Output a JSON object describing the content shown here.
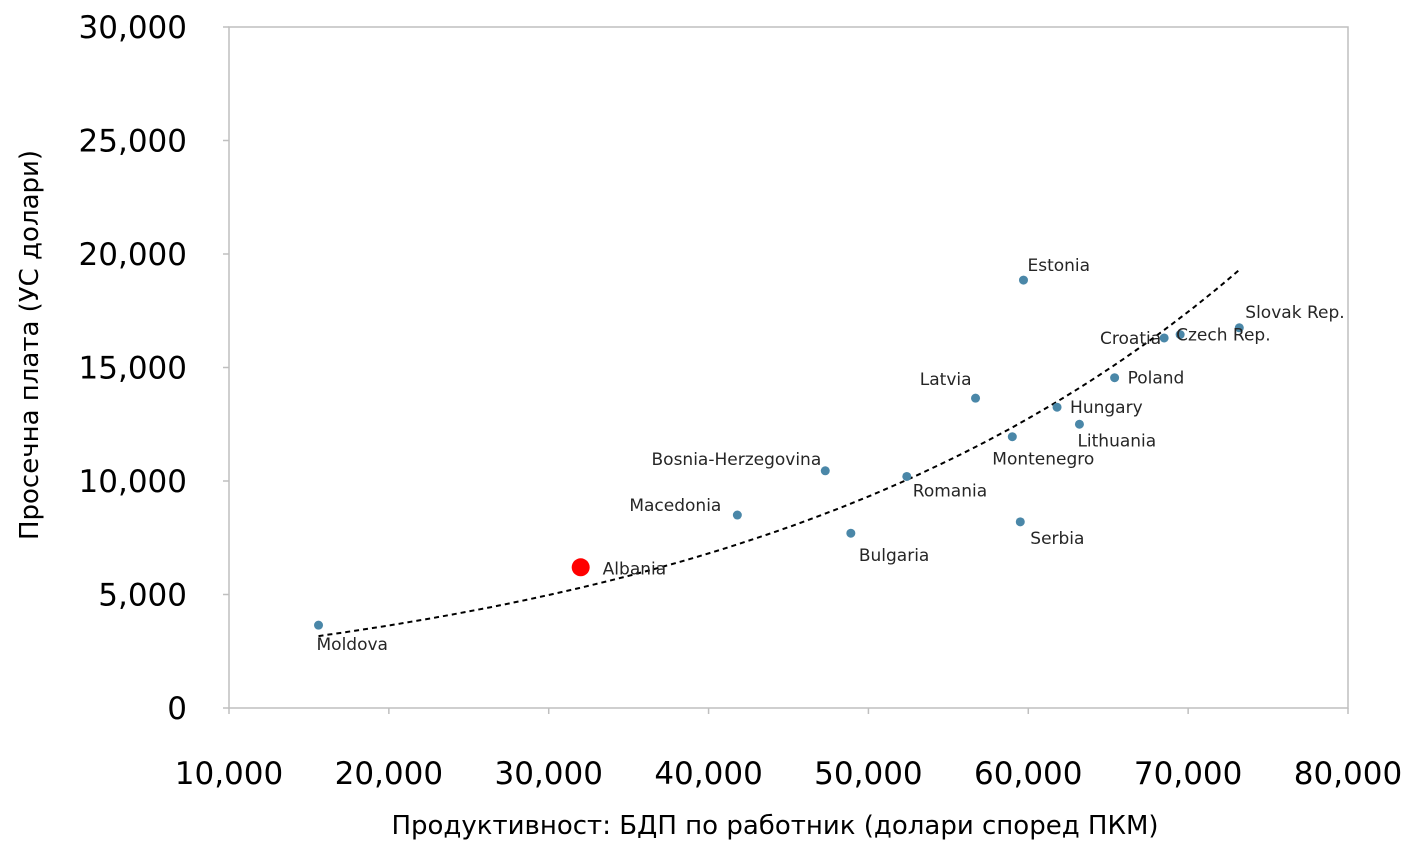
{
  "chart_data": {
    "type": "scatter",
    "title": "",
    "xlabel": "Продуктивност: БДП по работник (долари според ПКМ)",
    "ylabel": "Просечна плата (УС долари)",
    "xlim": [
      10000,
      80000
    ],
    "ylim": [
      0,
      30000
    ],
    "x_ticks": [
      10000,
      20000,
      30000,
      40000,
      50000,
      60000,
      70000,
      80000
    ],
    "x_tick_labels": [
      "10,000",
      "20,000",
      "30,000",
      "40,000",
      "50,000",
      "60,000",
      "70,000",
      "80,000"
    ],
    "y_ticks": [
      0,
      5000,
      10000,
      15000,
      20000,
      25000,
      30000
    ],
    "y_tick_labels": [
      "0",
      "5,000",
      "10,000",
      "15,000",
      "20,000",
      "25,000",
      "30,000"
    ],
    "grid": false,
    "point_color": "#4a87a8",
    "highlight_color": "#ff0000",
    "points": [
      {
        "label": "Moldova",
        "x": 15600,
        "y": 3650,
        "label_pos": "below-right"
      },
      {
        "label": "Albania",
        "x": 32000,
        "y": 6200,
        "highlight": true,
        "label_pos": "right"
      },
      {
        "label": "Macedonia",
        "x": 41800,
        "y": 8500,
        "label_pos": "above-left"
      },
      {
        "label": "Bosnia-Herzegovina",
        "x": 47300,
        "y": 10450,
        "label_pos": "above-left"
      },
      {
        "label": "Bulgaria",
        "x": 48900,
        "y": 7700,
        "label_pos": "below-right"
      },
      {
        "label": "Romania",
        "x": 52400,
        "y": 10200,
        "label_pos": "below-right"
      },
      {
        "label": "Latvia",
        "x": 56700,
        "y": 13650,
        "label_pos": "above-left"
      },
      {
        "label": "Montenegro",
        "x": 59000,
        "y": 11950,
        "label_pos": "below"
      },
      {
        "label": "Serbia",
        "x": 59500,
        "y": 8200,
        "label_pos": "below-right"
      },
      {
        "label": "Estonia",
        "x": 59700,
        "y": 18850,
        "label_pos": "above-right"
      },
      {
        "label": "Hungary",
        "x": 61800,
        "y": 13250,
        "label_pos": "right"
      },
      {
        "label": "Lithuania",
        "x": 63200,
        "y": 12500,
        "label_pos": "below-right"
      },
      {
        "label": "Poland",
        "x": 65400,
        "y": 14550,
        "label_pos": "right"
      },
      {
        "label": "Croatia",
        "x": 68500,
        "y": 16300,
        "label_pos": "left"
      },
      {
        "label": "Czech Rep.",
        "x": 69500,
        "y": 16450,
        "label_pos": "right"
      },
      {
        "label": "Slovak Rep.",
        "x": 73200,
        "y": 16750,
        "label_pos": "above-right"
      }
    ],
    "trendline": {
      "type": "exponential",
      "style": "dashed",
      "color": "#000000",
      "x_range": [
        15600,
        73200
      ],
      "a": 1942,
      "b": 3.137e-05
    }
  }
}
